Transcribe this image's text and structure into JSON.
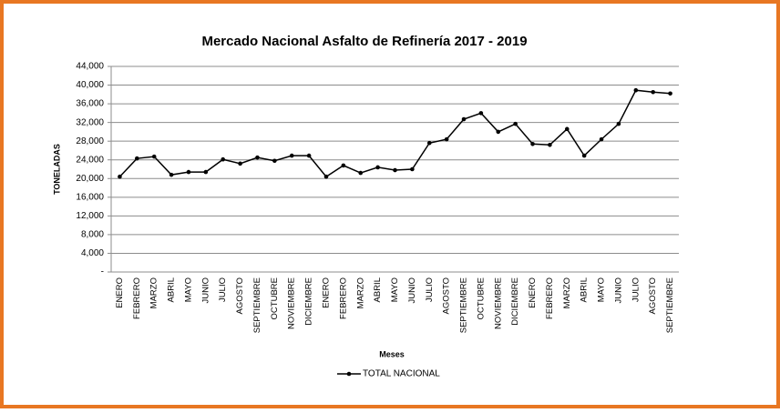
{
  "chart_data": {
    "type": "line",
    "title": "Mercado Nacional Asfalto de Refinería 2017 - 2019",
    "x_label": "Meses",
    "y_label": "TONELADAS",
    "categories": [
      "ENERO",
      "FEBRERO",
      "MARZO",
      "ABRIL",
      "MAYO",
      "JUNIO",
      "JULIO",
      "AGOSTO",
      "SEPTIEMBRE",
      "OCTUBRE",
      "NOVIEMBRE",
      "DICIEMBRE",
      "ENERO",
      "FEBRERO",
      "MARZO",
      "ABRIL",
      "MAYO",
      "JUNIO",
      "JULIO",
      "AGOSTO",
      "SEPTIEMBRE",
      "OCTUBRE",
      "NOVIEMBRE",
      "DICIEMBRE",
      "ENERO",
      "FEBRERO",
      "MARZO",
      "ABRIL",
      "MAYO",
      "JUNIO",
      "JULIO",
      "AGOSTO",
      "SEPTIEMBRE"
    ],
    "series": [
      {
        "name": "TOTAL NACIONAL",
        "color": "#000000",
        "values": [
          20400,
          24300,
          24700,
          20800,
          21400,
          21400,
          24100,
          23200,
          24500,
          23800,
          24900,
          24900,
          20400,
          22800,
          21200,
          22400,
          21800,
          22000,
          27600,
          28400,
          32700,
          34000,
          30000,
          31700,
          27400,
          27200,
          30600,
          24900,
          28400,
          31700,
          38900,
          38500,
          38200
        ]
      }
    ],
    "ylim": [
      0,
      44000
    ],
    "yticks": [
      {
        "value": 0,
        "label": "-"
      },
      {
        "value": 4000,
        "label": "4,000"
      },
      {
        "value": 8000,
        "label": "8,000"
      },
      {
        "value": 12000,
        "label": "12,000"
      },
      {
        "value": 16000,
        "label": "16,000"
      },
      {
        "value": 20000,
        "label": "20,000"
      },
      {
        "value": 24000,
        "label": "24,000"
      },
      {
        "value": 28000,
        "label": "28,000"
      },
      {
        "value": 32000,
        "label": "32,000"
      },
      {
        "value": 36000,
        "label": "36,000"
      },
      {
        "value": 40000,
        "label": "40,000"
      },
      {
        "value": 44000,
        "label": "44,000"
      }
    ],
    "grid": true
  }
}
